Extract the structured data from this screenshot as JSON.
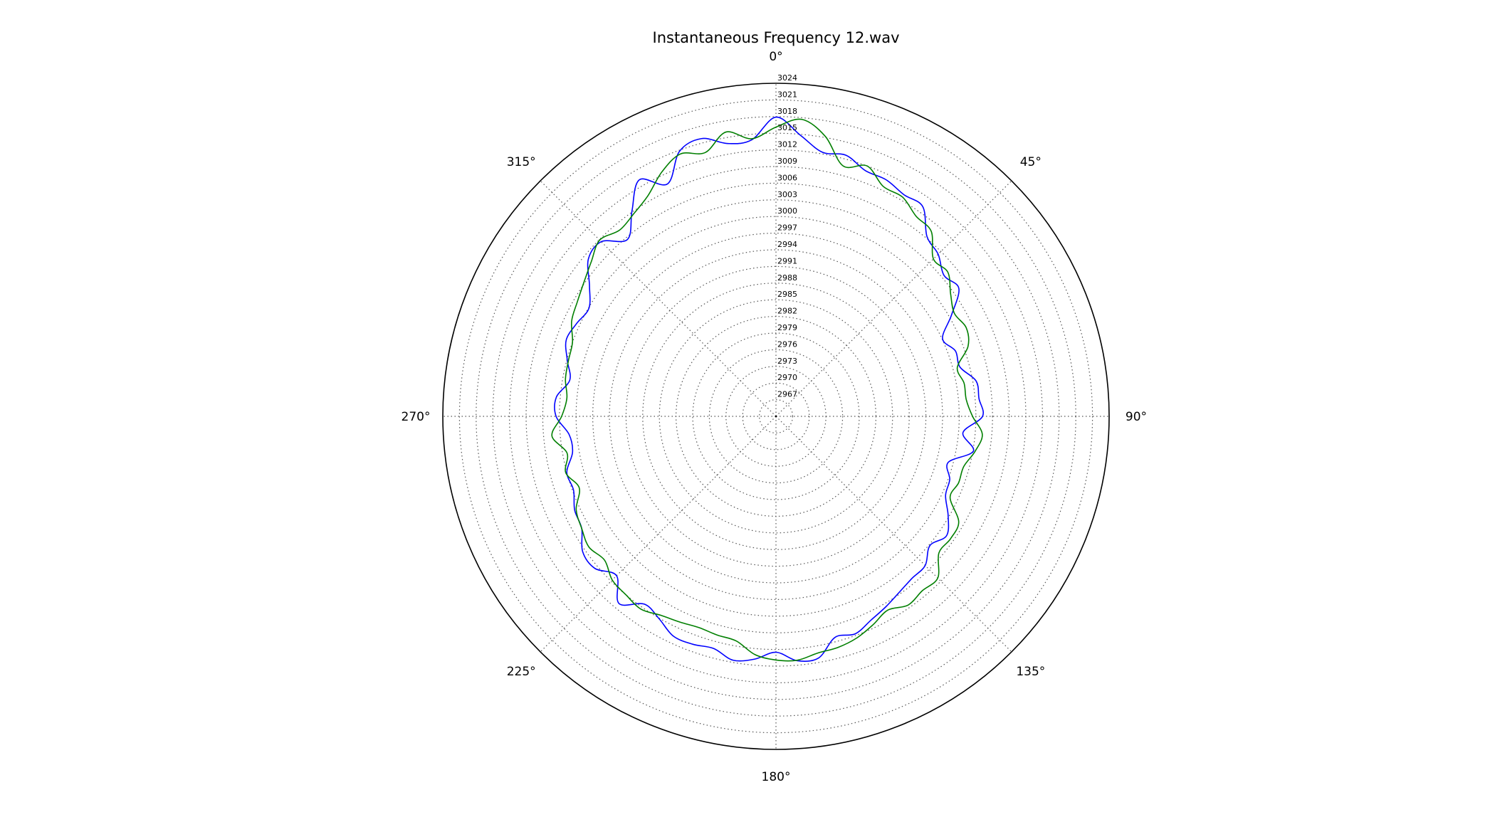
{
  "chart_data": {
    "type": "line",
    "projection": "polar",
    "title": "Instantaneous Frequency  12.wav",
    "theta_direction": "clockwise",
    "theta_zero": "top",
    "angle_ticks": [
      {
        "angle": 0,
        "label": "0°"
      },
      {
        "angle": 45,
        "label": "45°"
      },
      {
        "angle": 90,
        "label": "90°"
      },
      {
        "angle": 135,
        "label": "135°"
      },
      {
        "angle": 180,
        "label": "180°"
      },
      {
        "angle": 225,
        "label": "225°"
      },
      {
        "angle": 270,
        "label": "270°"
      },
      {
        "angle": 315,
        "label": "315°"
      }
    ],
    "rlim": [
      2964,
      3024
    ],
    "r_ticks": [
      2967,
      2970,
      2973,
      2976,
      2979,
      2982,
      2985,
      2988,
      2991,
      2994,
      2997,
      3000,
      3003,
      3006,
      3009,
      3012,
      3015,
      3018,
      3021,
      3024
    ],
    "grid": true,
    "legend": "none",
    "series": [
      {
        "color": "#0000ff",
        "points": [
          [
            0,
            3017.9
          ],
          [
            5,
            3014.8
          ],
          [
            10,
            3012.3
          ],
          [
            15,
            3012.7
          ],
          [
            20,
            3011.1
          ],
          [
            25,
            3011.0
          ],
          [
            30,
            3010.1
          ],
          [
            35,
            3010.1
          ],
          [
            40,
            3006.3
          ],
          [
            45,
            3005.3
          ],
          [
            50,
            3003.5
          ],
          [
            55,
            3004.2
          ],
          [
            60,
            3000.5
          ],
          [
            65,
            2997.1
          ],
          [
            70,
            2998.4
          ],
          [
            75,
            2998.3
          ],
          [
            80,
            3000.6
          ],
          [
            85,
            3000.7
          ],
          [
            90,
            3001.2
          ],
          [
            95,
            2997.8
          ],
          [
            100,
            3000.1
          ],
          [
            105,
            2996.1
          ],
          [
            110,
            2997.3
          ],
          [
            115,
            2997.7
          ],
          [
            120,
            2999.8
          ],
          [
            125,
            3001.5
          ],
          [
            130,
            3000.2
          ],
          [
            135,
            3002.0
          ],
          [
            140,
            3002.1
          ],
          [
            145,
            3002.7
          ],
          [
            150,
            3003.6
          ],
          [
            155,
            3004.5
          ],
          [
            160,
            3005.7
          ],
          [
            165,
            3005.2
          ],
          [
            170,
            3008.2
          ],
          [
            175,
            3008.2
          ],
          [
            180,
            3006.5
          ],
          [
            185,
            3007.9
          ],
          [
            190,
            3008.6
          ],
          [
            195,
            3007.3
          ],
          [
            200,
            3007.7
          ],
          [
            205,
            3007.7
          ],
          [
            210,
            3006.1
          ],
          [
            215,
            3005.3
          ],
          [
            220,
            3008.0
          ],
          [
            225,
            3004.6
          ],
          [
            230,
            3006.6
          ],
          [
            235,
            3006.5
          ],
          [
            240,
            3004.4
          ],
          [
            245,
            3004.0
          ],
          [
            250,
            3002.8
          ],
          [
            255,
            3003.0
          ],
          [
            260,
            3001.2
          ],
          [
            265,
            3001.4
          ],
          [
            270,
            3003.6
          ],
          [
            275,
            3003.7
          ],
          [
            280,
            3001.7
          ],
          [
            285,
            3002.9
          ],
          [
            290,
            3004.2
          ],
          [
            295,
            3003.6
          ],
          [
            300,
            3002.9
          ],
          [
            305,
            3005.0
          ],
          [
            310,
            3008.1
          ],
          [
            315,
            3008.5
          ],
          [
            320,
            3005.6
          ],
          [
            325,
            3009.2
          ],
          [
            330,
            3013.2
          ],
          [
            335,
            3010.2
          ],
          [
            340,
            3014.8
          ],
          [
            345,
            3015.8
          ],
          [
            350,
            3013.9
          ],
          [
            355,
            3014.0
          ]
        ]
      },
      {
        "color": "#007f00",
        "points": [
          [
            0,
            3016.1
          ],
          [
            5,
            3017.7
          ],
          [
            10,
            3015.2
          ],
          [
            15,
            3010.7
          ],
          [
            20,
            3012.0
          ],
          [
            25,
            3009.7
          ],
          [
            30,
            3009.6
          ],
          [
            35,
            3008.0
          ],
          [
            40,
            3007.5
          ],
          [
            45,
            3004.1
          ],
          [
            50,
            3004.4
          ],
          [
            55,
            3002.4
          ],
          [
            60,
            3001.1
          ],
          [
            65,
            3001.8
          ],
          [
            70,
            3000.8
          ],
          [
            75,
            2997.8
          ],
          [
            80,
            2998.4
          ],
          [
            85,
            2998.4
          ],
          [
            90,
            2999.4
          ],
          [
            95,
            3001.3
          ],
          [
            100,
            3000.4
          ],
          [
            105,
            2999.0
          ],
          [
            110,
            2999.0
          ],
          [
            115,
            2998.6
          ],
          [
            120,
            3002.0
          ],
          [
            125,
            3002.4
          ],
          [
            130,
            3002.3
          ],
          [
            135,
            3005.2
          ],
          [
            140,
            3005.0
          ],
          [
            145,
            3005.5
          ],
          [
            150,
            3004.3
          ],
          [
            155,
            3005.4
          ],
          [
            160,
            3006.5
          ],
          [
            165,
            3007.1
          ],
          [
            170,
            3007.3
          ],
          [
            175,
            3008.1
          ],
          [
            180,
            3007.9
          ],
          [
            185,
            3007.1
          ],
          [
            190,
            3005.1
          ],
          [
            195,
            3004.8
          ],
          [
            200,
            3004.5
          ],
          [
            205,
            3004.9
          ],
          [
            210,
            3005.4
          ],
          [
            215,
            3006.4
          ],
          [
            220,
            3006.0
          ],
          [
            225,
            3005.7
          ],
          [
            230,
            3004.3
          ],
          [
            235,
            3005.1
          ],
          [
            240,
            3004.4
          ],
          [
            245,
            3003.7
          ],
          [
            250,
            3001.7
          ],
          [
            255,
            3003.2
          ],
          [
            260,
            3002.2
          ],
          [
            265,
            3004.5
          ],
          [
            270,
            3002.6
          ],
          [
            275,
            3001.8
          ],
          [
            280,
            3002.5
          ],
          [
            285,
            3002.7
          ],
          [
            290,
            3003.0
          ],
          [
            295,
            3004.6
          ],
          [
            300,
            3005.3
          ],
          [
            305,
            3006.2
          ],
          [
            310,
            3007.4
          ],
          [
            315,
            3008.9
          ],
          [
            320,
            3007.8
          ],
          [
            325,
            3008.6
          ],
          [
            330,
            3010.0
          ],
          [
            335,
            3012.6
          ],
          [
            340,
            3014.3
          ],
          [
            345,
            3013.2
          ],
          [
            350,
            3016.0
          ],
          [
            355,
            3014.2
          ]
        ]
      }
    ]
  }
}
